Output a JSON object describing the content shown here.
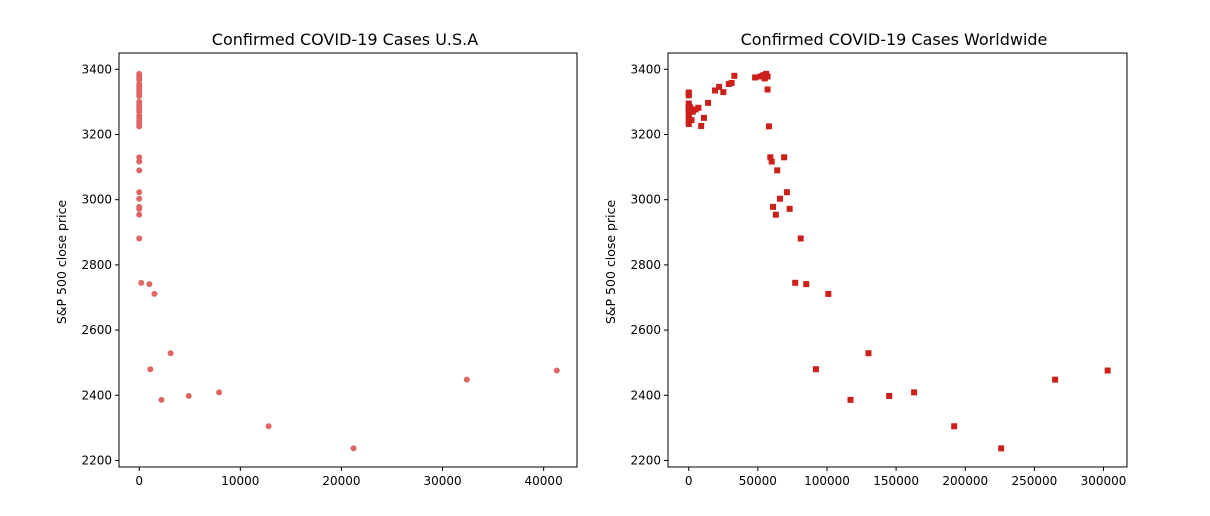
{
  "chart_data": [
    {
      "type": "scatter",
      "title": "Confirmed COVID-19 Cases U.S.A",
      "xlabel": "",
      "ylabel": "S&P 500 close price",
      "xlim": [
        -2000,
        43300
      ],
      "ylim": [
        2180,
        3450
      ],
      "xticks": [
        0,
        10000,
        20000,
        30000,
        40000
      ],
      "xtick_labels": [
        "0",
        "10000",
        "20000",
        "30000",
        "40000"
      ],
      "yticks": [
        2200,
        2400,
        2600,
        2800,
        3000,
        3200,
        3400
      ],
      "ytick_labels": [
        "2200",
        "2400",
        "2600",
        "2800",
        "3000",
        "3200",
        "3400"
      ],
      "marker": "circle",
      "color": "#e06666",
      "points": [
        [
          0,
          3386
        ],
        [
          0,
          3380
        ],
        [
          0,
          3375
        ],
        [
          0,
          3368
        ],
        [
          0,
          3355
        ],
        [
          0,
          3348
        ],
        [
          0,
          3340
        ],
        [
          0,
          3333
        ],
        [
          0,
          3325
        ],
        [
          0,
          3318
        ],
        [
          0,
          3300
        ],
        [
          0,
          3292
        ],
        [
          0,
          3285
        ],
        [
          0,
          3278
        ],
        [
          0,
          3270
        ],
        [
          0,
          3258
        ],
        [
          0,
          3250
        ],
        [
          0,
          3240
        ],
        [
          0,
          3232
        ],
        [
          0,
          3225
        ],
        [
          0,
          3130
        ],
        [
          0,
          3117
        ],
        [
          0,
          3090
        ],
        [
          0,
          3023
        ],
        [
          0,
          3003
        ],
        [
          0,
          2978
        ],
        [
          0,
          2972
        ],
        [
          0,
          2954
        ],
        [
          0,
          2881
        ],
        [
          200,
          2745
        ],
        [
          1000,
          2741
        ],
        [
          1500,
          2711
        ],
        [
          1100,
          2480
        ],
        [
          3100,
          2529
        ],
        [
          2200,
          2386
        ],
        [
          4900,
          2398
        ],
        [
          7900,
          2409
        ],
        [
          12800,
          2305
        ],
        [
          21200,
          2237
        ],
        [
          32400,
          2448
        ],
        [
          41300,
          2476
        ]
      ]
    },
    {
      "type": "scatter",
      "title": "Confirmed COVID-19 Cases Worldwide",
      "xlabel": "",
      "ylabel": "S&P 500 close price",
      "xlim": [
        -15000,
        317000
      ],
      "ylim": [
        2180,
        3450
      ],
      "xticks": [
        0,
        50000,
        100000,
        150000,
        200000,
        250000,
        300000
      ],
      "xtick_labels": [
        "0",
        "50000",
        "100000",
        "150000",
        "200000",
        "250000",
        "300000"
      ],
      "yticks": [
        2200,
        2400,
        2600,
        2800,
        3000,
        3200,
        3400
      ],
      "ytick_labels": [
        "2200",
        "2400",
        "2600",
        "2800",
        "3000",
        "3200",
        "3400"
      ],
      "marker": "square",
      "color": "#cc1f1a",
      "points": [
        [
          0,
          3329
        ],
        [
          0,
          3325
        ],
        [
          0,
          3320
        ],
        [
          0,
          3295
        ],
        [
          0,
          3290
        ],
        [
          0,
          3285
        ],
        [
          0,
          3278
        ],
        [
          0,
          3270
        ],
        [
          0,
          3262
        ],
        [
          0,
          3250
        ],
        [
          0,
          3240
        ],
        [
          0,
          3232
        ],
        [
          1000,
          3283
        ],
        [
          1500,
          3275
        ],
        [
          2000,
          3244
        ],
        [
          3000,
          3270
        ],
        [
          5000,
          3277
        ],
        [
          7000,
          3282
        ],
        [
          9000,
          3226
        ],
        [
          11000,
          3251
        ],
        [
          14000,
          3297
        ],
        [
          19000,
          3335
        ],
        [
          22000,
          3346
        ],
        [
          25000,
          3330
        ],
        [
          29000,
          3355
        ],
        [
          31000,
          3358
        ],
        [
          33000,
          3380
        ],
        [
          48000,
          3375
        ],
        [
          52000,
          3378
        ],
        [
          54000,
          3382
        ],
        [
          55000,
          3372
        ],
        [
          56000,
          3386
        ],
        [
          57000,
          3378
        ],
        [
          57000,
          3338
        ],
        [
          58000,
          3225
        ],
        [
          59000,
          3130
        ],
        [
          60000,
          3117
        ],
        [
          61000,
          2978
        ],
        [
          63000,
          2954
        ],
        [
          64000,
          3090
        ],
        [
          66000,
          3003
        ],
        [
          69000,
          3130
        ],
        [
          71000,
          3023
        ],
        [
          73000,
          2972
        ],
        [
          77000,
          2745
        ],
        [
          81000,
          2881
        ],
        [
          85000,
          2741
        ],
        [
          92000,
          2480
        ],
        [
          101000,
          2711
        ],
        [
          117000,
          2386
        ],
        [
          130000,
          2529
        ],
        [
          145000,
          2398
        ],
        [
          163000,
          2409
        ],
        [
          192000,
          2305
        ],
        [
          226000,
          2237
        ],
        [
          265000,
          2448
        ],
        [
          303000,
          2476
        ]
      ]
    }
  ]
}
